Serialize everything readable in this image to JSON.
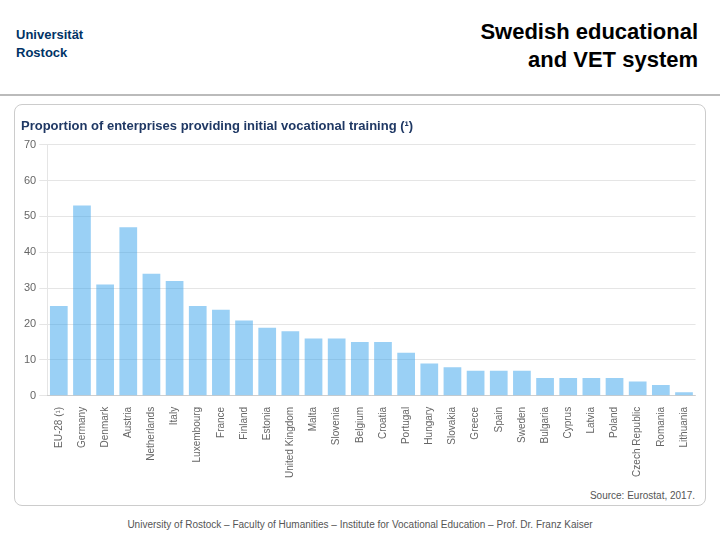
{
  "chart_data": {
    "type": "bar",
    "title": "Proportion of enterprises providing initial vocational training (¹)",
    "annotations": [
      "Universität",
      "Rostock",
      "Swedish educational",
      "and VET system",
      "Source: Eurostat, 2017.",
      "University of Rostock – Faculty of Humanities – Institute for Vocational Education – Prof. Dr. Franz Kaiser"
    ],
    "categories": [
      "EU-28 (¹)",
      "Germany",
      "Denmark",
      "Austria",
      "Netherlands",
      "Italy",
      "Luxembourg",
      "France",
      "Finland",
      "Estonia",
      "United Kingdom",
      "Malta",
      "Slovenia",
      "Belgium",
      "Croatia",
      "Portugal",
      "Hungary",
      "Slovakia",
      "Greece",
      "Spain",
      "Sweden",
      "Bulgaria",
      "Cyprus",
      "Latvia",
      "Poland",
      "Czech Republic",
      "Romania",
      "Lithuania"
    ],
    "values": [
      25,
      53,
      31,
      47,
      34,
      32,
      25,
      24,
      21,
      19,
      18,
      16,
      16,
      15,
      15,
      12,
      9,
      8,
      7,
      7,
      7,
      5,
      5,
      5,
      5,
      4,
      3,
      1
    ],
    "ylim": [
      0,
      70
    ],
    "yticks": [
      0,
      10,
      20,
      30,
      40,
      50,
      60,
      70
    ],
    "grid": true
  }
}
